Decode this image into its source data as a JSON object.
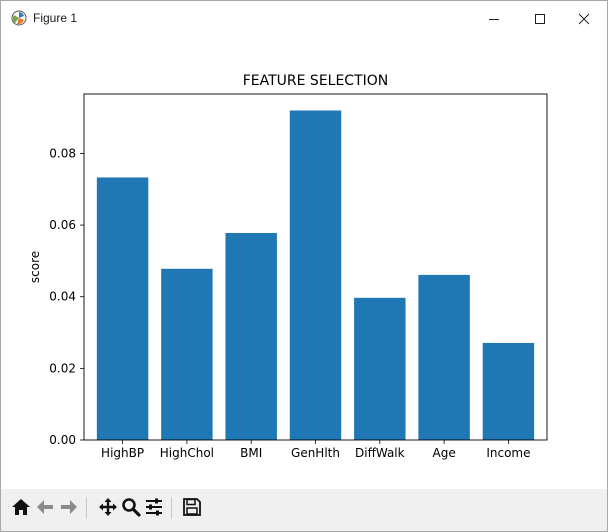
{
  "window": {
    "title": "Figure 1",
    "icons": {
      "app": "matplotlib-icon",
      "minimize": "minimize-icon",
      "maximize": "maximize-icon",
      "close": "close-icon"
    }
  },
  "toolbar": {
    "buttons": [
      {
        "name": "home",
        "icon": "home-icon"
      },
      {
        "name": "back",
        "icon": "arrow-left-icon"
      },
      {
        "name": "forward",
        "icon": "arrow-right-icon"
      },
      {
        "name": "pan",
        "icon": "move-icon"
      },
      {
        "name": "zoom",
        "icon": "magnifier-icon"
      },
      {
        "name": "configure",
        "icon": "sliders-icon"
      },
      {
        "name": "save",
        "icon": "save-icon"
      }
    ]
  },
  "chart_data": {
    "type": "bar",
    "title": "FEATURE SELECTION",
    "xlabel": "",
    "ylabel": "score",
    "categories": [
      "HighBP",
      "HighChol",
      "BMI",
      "GenHlth",
      "DiffWalk",
      "Age",
      "Income"
    ],
    "values": [
      0.0733,
      0.0478,
      0.0578,
      0.092,
      0.0397,
      0.0461,
      0.0271
    ],
    "ylim": [
      0,
      0.0966
    ],
    "yticks": [
      0.0,
      0.02,
      0.04,
      0.06,
      0.08
    ],
    "ytick_labels": [
      "0.00",
      "0.02",
      "0.04",
      "0.06",
      "0.08"
    ],
    "bar_color": "#1f77b4",
    "grid": false,
    "legend": "none"
  }
}
